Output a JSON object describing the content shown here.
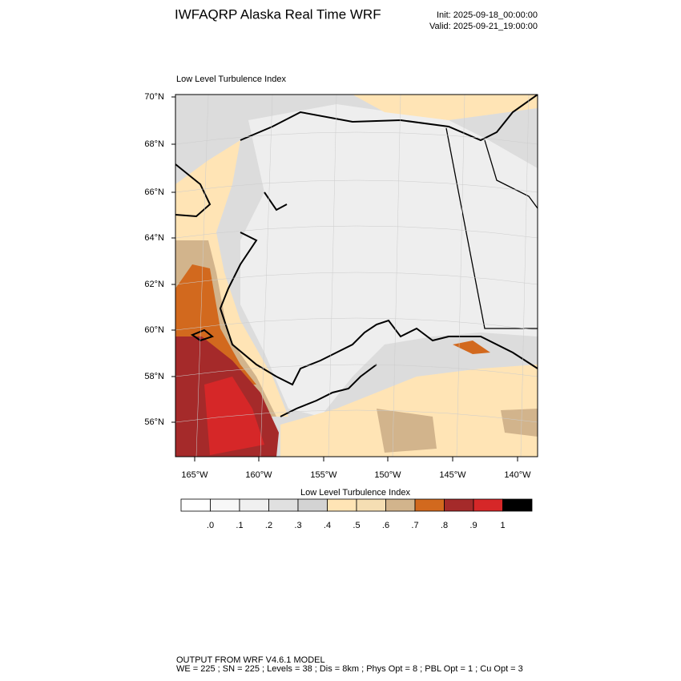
{
  "header": {
    "title": "IWFAQRP Alaska Real Time WRF",
    "init": "Init: 2025-09-18_00:00:00",
    "valid": "Valid: 2025-09-21_19:00:00"
  },
  "map": {
    "title": "Low Level Turbulence Index",
    "lat_labels": [
      "70°N",
      "68°N",
      "66°N",
      "64°N",
      "62°N",
      "60°N",
      "58°N",
      "56°N"
    ],
    "lon_labels": [
      "165°W",
      "160°W",
      "155°W",
      "150°W",
      "145°W",
      "140°W"
    ]
  },
  "colorbar": {
    "title": "Low Level Turbulence Index",
    "colors": [
      "#ffffff",
      "#f8f8f8",
      "#f0f0f0",
      "#e0e0e0",
      "#d3d3d3",
      "#ffe4b5",
      "#f5deb3",
      "#d2b48c",
      "#d2691e",
      "#a52a2a",
      "#d62728",
      "#000000"
    ],
    "labels": [
      ".0",
      ".1",
      ".2",
      ".3",
      ".4",
      ".5",
      ".6",
      ".7",
      ".8",
      ".9",
      "1"
    ]
  },
  "footer": {
    "line1": "OUTPUT FROM WRF V4.6.1 MODEL",
    "line2": "WE = 225 ; SN = 225 ; Levels = 38 ; Dis = 8km ; Phys Opt = 8 ; PBL Opt = 1 ; Cu Opt = 3"
  }
}
